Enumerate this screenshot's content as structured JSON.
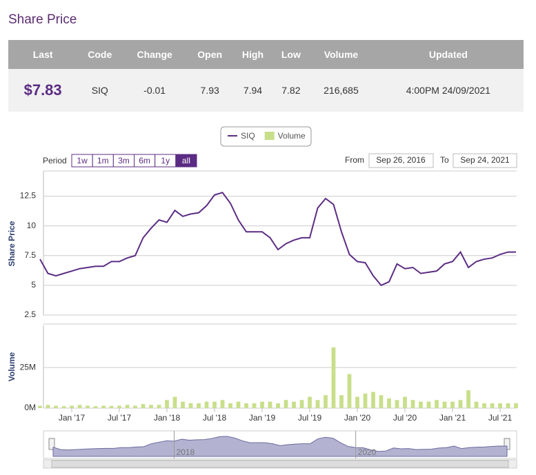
{
  "header": {
    "title": "Share Price"
  },
  "table": {
    "columns": [
      "Last",
      "Code",
      "Change",
      "Open",
      "High",
      "Low",
      "Volume",
      "Updated"
    ],
    "rows": [
      [
        "$7.83",
        "SIQ",
        "-0.01",
        "7.93",
        "7.94",
        "7.82",
        "216,685",
        "4:00PM 24/09/2021"
      ]
    ]
  },
  "controls": {
    "period_label": "Period",
    "periods": [
      "1w",
      "1m",
      "3m",
      "6m",
      "1y",
      "all"
    ],
    "active_period": 5,
    "from_label": "From",
    "from": "Sep 26, 2016",
    "to_label": "To",
    "to": "Sep 24, 2021"
  },
  "navigator": {
    "labels": [
      "2018",
      "2020"
    ]
  },
  "chart_data": [
    {
      "type": "line",
      "y_label": "Share Price",
      "x": [
        "2016-09",
        "2016-10",
        "2016-11",
        "2016-12",
        "2017-01",
        "2017-02",
        "2017-03",
        "2017-04",
        "2017-05",
        "2017-06",
        "2017-07",
        "2017-08",
        "2017-09",
        "2017-10",
        "2017-11",
        "2017-12",
        "2018-01",
        "2018-02",
        "2018-03",
        "2018-04",
        "2018-05",
        "2018-06",
        "2018-07",
        "2018-08",
        "2018-09",
        "2018-10",
        "2018-11",
        "2018-12",
        "2019-01",
        "2019-02",
        "2019-03",
        "2019-04",
        "2019-05",
        "2019-06",
        "2019-07",
        "2019-08",
        "2019-09",
        "2019-10",
        "2019-11",
        "2019-12",
        "2020-01",
        "2020-02",
        "2020-03",
        "2020-04",
        "2020-05",
        "2020-06",
        "2020-07",
        "2020-08",
        "2020-09",
        "2020-10",
        "2020-11",
        "2020-12",
        "2021-01",
        "2021-02",
        "2021-03",
        "2021-04",
        "2021-05",
        "2021-06",
        "2021-07",
        "2021-08",
        "2021-09"
      ],
      "xlim": [
        "2016-09",
        "2021-09"
      ],
      "series": [
        {
          "name": "SIQ",
          "color": "#5b2c83",
          "values": [
            7.2,
            6.0,
            5.8,
            6.0,
            6.2,
            6.4,
            6.5,
            6.6,
            6.6,
            7.0,
            7.0,
            7.3,
            7.5,
            9.0,
            9.8,
            10.5,
            10.3,
            11.3,
            10.8,
            11.0,
            11.1,
            11.7,
            12.6,
            12.8,
            11.9,
            10.5,
            9.5,
            9.5,
            9.5,
            9.0,
            8.0,
            8.5,
            8.8,
            9.0,
            9.0,
            11.5,
            12.3,
            11.8,
            9.5,
            7.6,
            7.0,
            6.9,
            5.8,
            5.0,
            5.3,
            6.8,
            6.4,
            6.5,
            6.0,
            6.1,
            6.2,
            6.8,
            7.0,
            7.8,
            6.5,
            7.0,
            7.2,
            7.3,
            7.6,
            7.8,
            7.8
          ]
        }
      ],
      "ylim": [
        2.5,
        14.5
      ],
      "yticks": [
        2.5,
        5,
        7.5,
        10,
        12.5
      ],
      "grid": true
    },
    {
      "type": "bar",
      "y_label": "Volume",
      "x": [
        "2016-09",
        "2016-10",
        "2016-11",
        "2016-12",
        "2017-01",
        "2017-02",
        "2017-03",
        "2017-04",
        "2017-05",
        "2017-06",
        "2017-07",
        "2017-08",
        "2017-09",
        "2017-10",
        "2017-11",
        "2017-12",
        "2018-01",
        "2018-02",
        "2018-03",
        "2018-04",
        "2018-05",
        "2018-06",
        "2018-07",
        "2018-08",
        "2018-09",
        "2018-10",
        "2018-11",
        "2018-12",
        "2019-01",
        "2019-02",
        "2019-03",
        "2019-04",
        "2019-05",
        "2019-06",
        "2019-07",
        "2019-08",
        "2019-09",
        "2019-10",
        "2019-11",
        "2019-12",
        "2020-01",
        "2020-02",
        "2020-03",
        "2020-04",
        "2020-05",
        "2020-06",
        "2020-07",
        "2020-08",
        "2020-09",
        "2020-10",
        "2020-11",
        "2020-12",
        "2021-01",
        "2021-02",
        "2021-03",
        "2021-04",
        "2021-05",
        "2021-06",
        "2021-07",
        "2021-08",
        "2021-09"
      ],
      "xlim": [
        "2016-09",
        "2021-09"
      ],
      "xticks": [
        {
          "value": "2017-01",
          "label": "Jan '17"
        },
        {
          "value": "2017-07",
          "label": "Jul '17"
        },
        {
          "value": "2018-01",
          "label": "Jan '18"
        },
        {
          "value": "2018-07",
          "label": "Jul '18"
        },
        {
          "value": "2019-01",
          "label": "Jan '19"
        },
        {
          "value": "2019-07",
          "label": "Jul '19"
        },
        {
          "value": "2020-01",
          "label": "Jan '20"
        },
        {
          "value": "2020-07",
          "label": "Jul '20"
        },
        {
          "value": "2021-01",
          "label": "Jan '21"
        },
        {
          "value": "2021-07",
          "label": "Jul '21"
        }
      ],
      "series": [
        {
          "name": "Volume",
          "color": "#c8df8a",
          "values": [
            1500000,
            2000000,
            1500000,
            1200000,
            1500000,
            2000000,
            1500000,
            1200000,
            1500000,
            1300000,
            1500000,
            2000000,
            1500000,
            2500000,
            2000000,
            2000000,
            5000000,
            7000000,
            4000000,
            3000000,
            3000000,
            4000000,
            4000000,
            5000000,
            3000000,
            4000000,
            3000000,
            3000000,
            4000000,
            4000000,
            3000000,
            5000000,
            4000000,
            5000000,
            7000000,
            5000000,
            8000000,
            37500000,
            8000000,
            21000000,
            7000000,
            9000000,
            10000000,
            8000000,
            6000000,
            5000000,
            7000000,
            5000000,
            4000000,
            4000000,
            5000000,
            4000000,
            4000000,
            5000000,
            11000000,
            4000000,
            3000000,
            3000000,
            3000000,
            3000000,
            3000000
          ]
        }
      ],
      "ylim": [
        0,
        51000000
      ],
      "yticks": [
        {
          "value": 0,
          "label": "0M"
        },
        {
          "value": 25000000,
          "label": "25M"
        }
      ],
      "grid": true
    }
  ]
}
